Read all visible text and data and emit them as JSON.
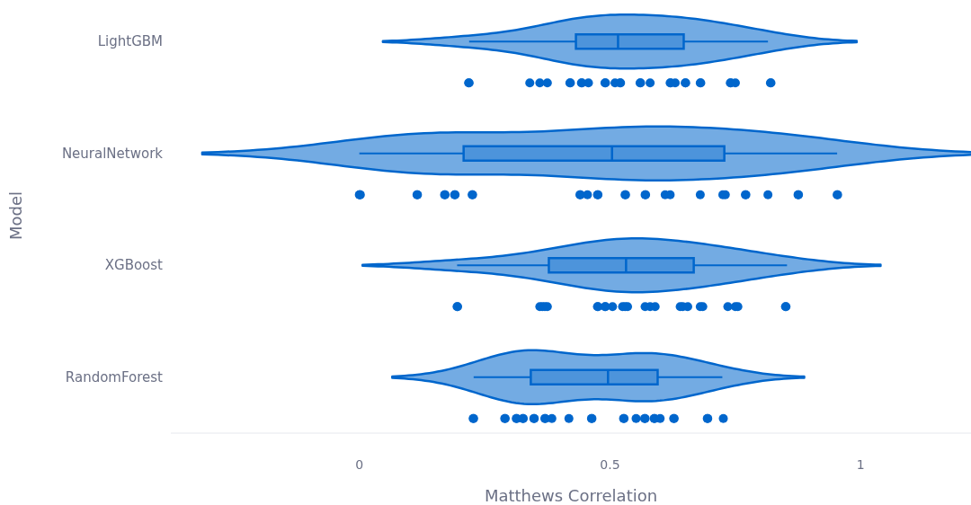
{
  "chart_data": {
    "type": "box",
    "orientation": "horizontal",
    "xlabel": "Matthews Correlation",
    "ylabel": "Model",
    "categories": [
      "LightGBM",
      "NeuralNetwork",
      "XGBoost",
      "RandomForest"
    ],
    "xlim": [
      -0.376,
      1.22
    ],
    "xticks": [
      0,
      0.5,
      1
    ],
    "series": [
      {
        "type": "box",
        "color": "#0066cc",
        "boxes": [
          {
            "low": 0.219,
            "q1": 0.432,
            "median": 0.516,
            "q3": 0.647,
            "high": 0.815
          },
          {
            "low": 0,
            "q1": 0.208,
            "median": 0.504,
            "q3": 0.728,
            "high": 0.953
          },
          {
            "low": 0.195,
            "q1": 0.378,
            "median": 0.532,
            "q3": 0.667,
            "high": 0.853
          },
          {
            "low": 0.228,
            "q1": 0.342,
            "median": 0.496,
            "q3": 0.595,
            "high": 0.724
          }
        ]
      },
      {
        "type": "scatter",
        "color": "#0066cc",
        "x": [
          "LightGBM",
          "LightGBM",
          "LightGBM",
          "LightGBM",
          "LightGBM",
          "LightGBM",
          "LightGBM",
          "LightGBM",
          "LightGBM",
          "LightGBM",
          "LightGBM",
          "LightGBM",
          "LightGBM",
          "LightGBM",
          "LightGBM",
          "LightGBM",
          "LightGBM",
          "LightGBM",
          "LightGBM",
          "LightGBM",
          "LightGBM",
          "LightGBM",
          "LightGBM",
          "LightGBM",
          "LightGBM",
          "LightGBM",
          "LightGBM",
          "LightGBM",
          "LightGBM",
          "LightGBM",
          "NeuralNetwork",
          "NeuralNetwork",
          "NeuralNetwork",
          "NeuralNetwork",
          "NeuralNetwork",
          "NeuralNetwork",
          "NeuralNetwork",
          "NeuralNetwork",
          "NeuralNetwork",
          "NeuralNetwork",
          "NeuralNetwork",
          "NeuralNetwork",
          "NeuralNetwork",
          "NeuralNetwork",
          "NeuralNetwork",
          "NeuralNetwork",
          "NeuralNetwork",
          "NeuralNetwork",
          "NeuralNetwork",
          "NeuralNetwork",
          "NeuralNetwork",
          "NeuralNetwork",
          "NeuralNetwork",
          "NeuralNetwork",
          "NeuralNetwork",
          "NeuralNetwork",
          "NeuralNetwork",
          "NeuralNetwork",
          "NeuralNetwork",
          "NeuralNetwork",
          "NeuralNetwork",
          "NeuralNetwork",
          "XGBoost",
          "XGBoost",
          "XGBoost",
          "XGBoost",
          "XGBoost",
          "XGBoost",
          "XGBoost",
          "XGBoost",
          "XGBoost",
          "XGBoost",
          "XGBoost",
          "XGBoost",
          "XGBoost",
          "XGBoost",
          "XGBoost",
          "XGBoost",
          "XGBoost",
          "XGBoost",
          "XGBoost",
          "XGBoost",
          "XGBoost",
          "XGBoost",
          "XGBoost",
          "XGBoost",
          "XGBoost",
          "XGBoost",
          "XGBoost",
          "RandomForest",
          "RandomForest",
          "RandomForest",
          "RandomForest",
          "RandomForest",
          "RandomForest",
          "RandomForest",
          "RandomForest",
          "RandomForest",
          "RandomForest",
          "RandomForest",
          "RandomForest",
          "RandomForest",
          "RandomForest",
          "RandomForest",
          "RandomForest",
          "RandomForest",
          "RandomForest",
          "RandomForest",
          "RandomForest",
          "RandomForest",
          "RandomForest",
          "RandomForest",
          "RandomForest",
          "RandomForest",
          "RandomForest",
          "RandomForest",
          "RandomForest",
          "RandomForest"
        ],
        "values": [
          0.218,
          0.219,
          0.34,
          0.36,
          0.375,
          0.42,
          0.421,
          0.443,
          0.444,
          0.457,
          0.49,
          0.491,
          0.51,
          0.52,
          0.521,
          0.56,
          0.561,
          0.58,
          0.62,
          0.621,
          0.63,
          0.65,
          0.651,
          0.68,
          0.681,
          0.74,
          0.741,
          0.75,
          0.82,
          0.821,
          0,
          0.001,
          0.002,
          0.115,
          0.116,
          0.17,
          0.171,
          0.19,
          0.191,
          0.225,
          0.226,
          0.44,
          0.441,
          0.455,
          0.475,
          0.476,
          0.53,
          0.531,
          0.57,
          0.571,
          0.61,
          0.62,
          0.68,
          0.725,
          0.73,
          0.77,
          0.771,
          0.815,
          0.875,
          0.876,
          0.953,
          0.954,
          0.195,
          0.196,
          0.36,
          0.365,
          0.37,
          0.375,
          0.475,
          0.476,
          0.49,
          0.491,
          0.505,
          0.525,
          0.53,
          0.535,
          0.57,
          0.58,
          0.59,
          0.64,
          0.645,
          0.655,
          0.68,
          0.685,
          0.735,
          0.75,
          0.755,
          0.85,
          0.851,
          0.227,
          0.228,
          0.29,
          0.291,
          0.313,
          0.314,
          0.326,
          0.327,
          0.348,
          0.349,
          0.37,
          0.371,
          0.384,
          0.418,
          0.463,
          0.464,
          0.527,
          0.528,
          0.552,
          0.569,
          0.57,
          0.588,
          0.589,
          0.6,
          0.627,
          0.628,
          0.694,
          0.695,
          0.726
        ]
      }
    ]
  }
}
